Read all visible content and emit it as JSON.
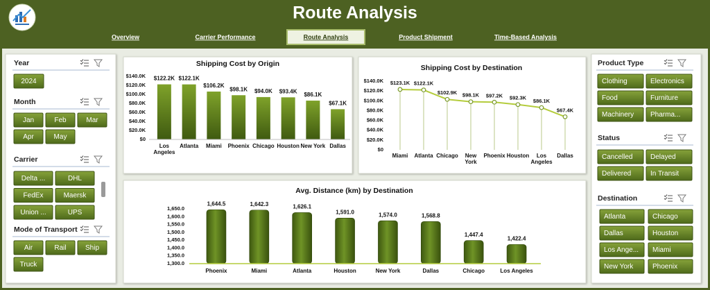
{
  "header": {
    "title": "Route Analysis",
    "nav": [
      {
        "label": "Overview",
        "active": false
      },
      {
        "label": "Carrier Performance",
        "active": false
      },
      {
        "label": "Route Analysis",
        "active": true
      },
      {
        "label": "Product Shipment",
        "active": false
      },
      {
        "label": "Time-Based Analysis",
        "active": false
      }
    ]
  },
  "slicers": [
    {
      "title": "Year",
      "items": [
        "2024"
      ]
    },
    {
      "title": "Month",
      "items": [
        "Jan",
        "Feb",
        "Mar",
        "Apr",
        "May"
      ]
    },
    {
      "title": "Carrier",
      "items": [
        "Delta ...",
        "DHL",
        "FedEx",
        "Maersk",
        "Union ...",
        "UPS"
      ]
    },
    {
      "title": "Mode of Transport",
      "items": [
        "Air",
        "Rail",
        "Ship",
        "Truck"
      ]
    },
    {
      "title": "Product Type",
      "items": [
        "Clothing",
        "Electronics",
        "Food",
        "Furniture",
        "Machinery",
        "Pharma..."
      ]
    },
    {
      "title": "Status",
      "items": [
        "Cancelled",
        "Delayed",
        "Delivered",
        "In Transit"
      ]
    },
    {
      "title": "Destination",
      "items": [
        "Atlanta",
        "Chicago",
        "Dallas",
        "Houston",
        "Los Ange...",
        "Miami",
        "New York",
        "Phoenix"
      ]
    }
  ],
  "chart_data": [
    {
      "type": "bar",
      "title": "Shipping Cost by Origin",
      "categories": [
        "Los Angeles",
        "Atlanta",
        "Miami",
        "Phoenix",
        "Chicago",
        "Houston",
        "New York",
        "Dallas"
      ],
      "values": [
        122200,
        122100,
        106200,
        98100,
        94000,
        93400,
        86100,
        67100
      ],
      "value_labels": [
        "$122.2K",
        "$122.1K",
        "$106.2K",
        "$98.1K",
        "$94.0K",
        "$93.4K",
        "$86.1K",
        "$67.1K"
      ],
      "color": "#6a8a1e",
      "ylim": [
        0,
        140000
      ],
      "yticks": [
        {
          "value": 0,
          "label": "$0"
        },
        {
          "value": 20000,
          "label": "$20.0K"
        },
        {
          "value": 40000,
          "label": "$40.0K"
        },
        {
          "value": 60000,
          "label": "$60.0K"
        },
        {
          "value": 80000,
          "label": "$80.0K"
        },
        {
          "value": 100000,
          "label": "$100.0K"
        },
        {
          "value": 120000,
          "label": "$120.0K"
        },
        {
          "value": 140000,
          "label": "$140.0K"
        }
      ]
    },
    {
      "type": "line",
      "title": "Shipping Cost by Destination",
      "categories": [
        "Miami",
        "Atlanta",
        "Chicago",
        "New York",
        "Phoenix",
        "Houston",
        "Los Angeles",
        "Dallas"
      ],
      "values": [
        123100,
        122100,
        102900,
        98100,
        97200,
        92300,
        86100,
        67400
      ],
      "value_labels": [
        "$123.1K",
        "$122.1K",
        "$102.9K",
        "$98.1K",
        "$97.2K",
        "$92.3K",
        "$86.1K",
        "$67.4K"
      ],
      "color": "#b4cc3c",
      "ylim": [
        0,
        140000
      ],
      "yticks": [
        {
          "value": 0,
          "label": "$0"
        },
        {
          "value": 20000,
          "label": "$20.0K"
        },
        {
          "value": 40000,
          "label": "$40.0K"
        },
        {
          "value": 60000,
          "label": "$60.0K"
        },
        {
          "value": 80000,
          "label": "$80.0K"
        },
        {
          "value": 100000,
          "label": "$100.0K"
        },
        {
          "value": 120000,
          "label": "$120.0K"
        },
        {
          "value": 140000,
          "label": "$140.0K"
        }
      ]
    },
    {
      "type": "bar",
      "title": "Avg. Distance (km) by Destination",
      "categories": [
        "Phoenix",
        "Miami",
        "Atlanta",
        "Houston",
        "New York",
        "Dallas",
        "Chicago",
        "Los Angeles"
      ],
      "values": [
        1644.5,
        1642.3,
        1626.1,
        1591.0,
        1574.0,
        1568.8,
        1447.4,
        1422.4
      ],
      "value_labels": [
        "1,644.5",
        "1,642.3",
        "1,626.1",
        "1,591.0",
        "1,574.0",
        "1,568.8",
        "1,447.4",
        "1,422.4"
      ],
      "color": "#55751a",
      "ylim": [
        1300,
        1650
      ],
      "yticks": [
        {
          "value": 1300,
          "label": "1,300.0"
        },
        {
          "value": 1350,
          "label": "1,350.0"
        },
        {
          "value": 1400,
          "label": "1,400.0"
        },
        {
          "value": 1450,
          "label": "1,450.0"
        },
        {
          "value": 1500,
          "label": "1,500.0"
        },
        {
          "value": 1550,
          "label": "1,550.0"
        },
        {
          "value": 1600,
          "label": "1,600.0"
        },
        {
          "value": 1650,
          "label": "1,650.0"
        }
      ]
    }
  ]
}
